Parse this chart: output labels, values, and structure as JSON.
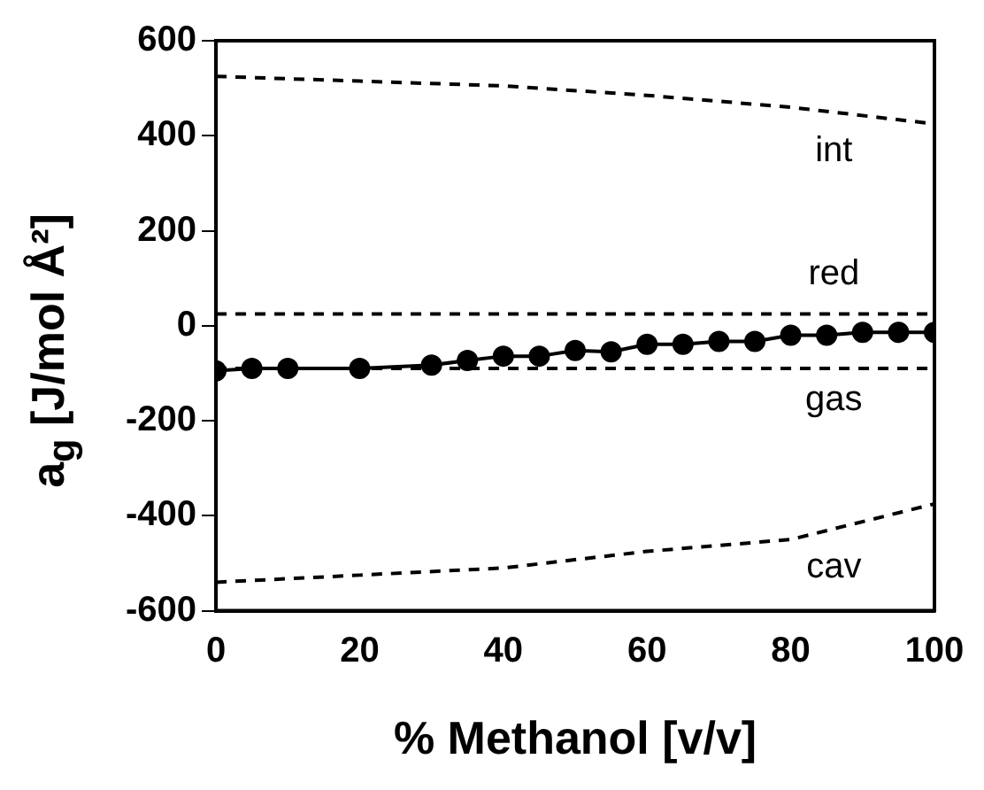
{
  "chart_data": {
    "type": "line",
    "xlabel": "% Methanol [v/v]",
    "ylabel": "a$_{g}$ [J/mol Å²]",
    "xlim": [
      0,
      100
    ],
    "xticks": [
      0,
      20,
      40,
      60,
      80,
      100
    ],
    "ylim": [
      -600,
      600
    ],
    "yticks": [
      -600,
      -400,
      -200,
      0,
      200,
      400,
      600
    ],
    "grid": false,
    "legend": false,
    "series": [
      {
        "name": "int",
        "color": "#000000",
        "line_style": "dashed",
        "marker": "none",
        "x": [
          0,
          20,
          40,
          60,
          80,
          100
        ],
        "values": [
          525,
          515,
          505,
          485,
          460,
          425
        ]
      },
      {
        "name": "cav",
        "color": "#000000",
        "line_style": "dashed",
        "marker": "none",
        "x": [
          0,
          20,
          40,
          60,
          80,
          100
        ],
        "values": [
          -540,
          -525,
          -510,
          -475,
          -450,
          -375
        ]
      },
      {
        "color": "#000000",
        "line_style": "solid",
        "marker": "circle",
        "x": [
          0,
          5,
          10,
          20,
          30,
          35,
          40,
          45,
          50,
          55,
          60,
          65,
          70,
          75,
          80,
          85,
          90,
          95,
          100
        ],
        "values": [
          -95,
          -90,
          -90,
          -90,
          -83,
          -73,
          -64,
          -64,
          -52,
          -55,
          -39,
          -39,
          -33,
          -33,
          -20,
          -20,
          -14,
          -14,
          -14
        ]
      }
    ],
    "ref_lines": [
      {
        "axis": "y",
        "value": 25,
        "label": "red",
        "color": "#000000",
        "line_style": "dashed"
      },
      {
        "axis": "y",
        "value": -90,
        "label": "gas",
        "color": "#000000",
        "line_style": "dashed"
      }
    ]
  }
}
